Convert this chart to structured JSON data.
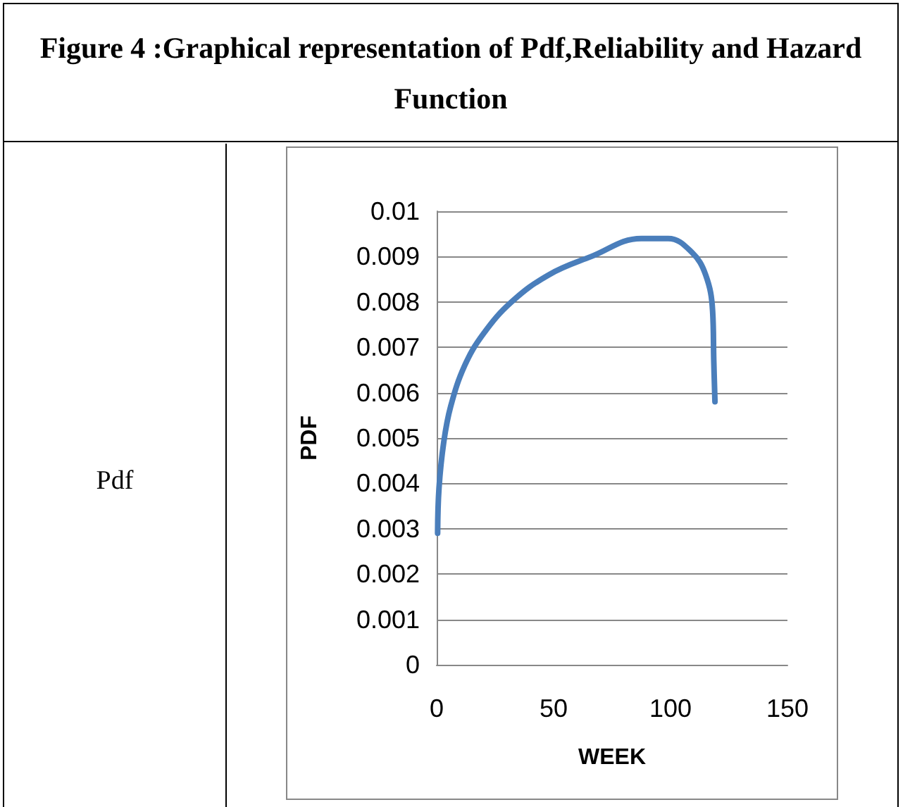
{
  "chart_data": {
    "type": "line",
    "title": "Figure 4 :Graphical representation of Pdf,Reliability and Hazard Function",
    "annotations": [
      "Pdf"
    ],
    "xlabel": "WEEK",
    "ylabel": "PDF",
    "x": [
      0.4,
      1,
      3,
      6,
      12,
      20,
      32,
      48,
      66,
      87.5,
      99,
      109,
      115,
      118,
      118.5,
      119
    ],
    "series": [
      {
        "color": "#4a7ebb",
        "values": [
          0.0029,
          0.0039,
          0.0049,
          0.0057,
          0.0066,
          0.0073,
          0.008,
          0.0086,
          0.009,
          0.0094,
          0.0094,
          0.0091,
          0.0086,
          0.0078,
          0.0067,
          0.0058
        ]
      }
    ],
    "xlim": [
      0,
      150
    ],
    "xticks": [
      0,
      50,
      100,
      150
    ],
    "ylim": [
      0,
      0.01
    ],
    "yticks": [
      0,
      0.001,
      0.002,
      0.003,
      0.004,
      0.005,
      0.006,
      0.007,
      0.008,
      0.009,
      0.01
    ],
    "grid": "y",
    "marker": "none",
    "line_style": "solid"
  }
}
